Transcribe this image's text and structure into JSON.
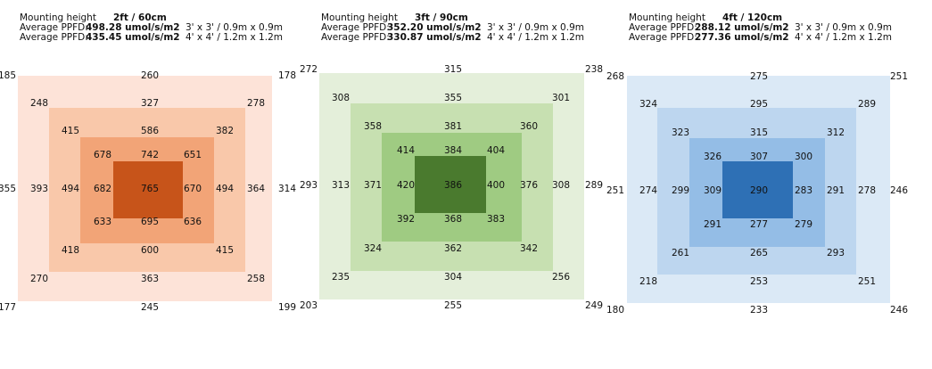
{
  "panels": [
    {
      "labels": {
        "mounting": "Mounting height",
        "height": "2ft / 60cm",
        "ppfd_label_1": "Average PPFD:",
        "ppfd_label_2": "Average PPFD:",
        "ppfd_1": "498.28 umol/s/m2",
        "ppfd_2": "435.45 umol/s/m2",
        "size_1": "3' x 3' / 0.9m x 0.9m",
        "size_2": "4' x 4' / 1.2m x 1.2m"
      },
      "colors": [
        "#fde3d8",
        "#f9c8aa",
        "#f2a477",
        "#c7541a"
      ],
      "values": {
        "outer": {
          "tl": "185",
          "t": "260",
          "tr": "178",
          "l": "355",
          "r": "314",
          "bl": "177",
          "b": "245",
          "br": "199"
        },
        "ring1": {
          "tl": "248",
          "t": "327",
          "tr": "278",
          "l": "393",
          "r": "364",
          "bl": "270",
          "b": "363",
          "br": "258"
        },
        "ring2": {
          "tl": "415",
          "t": "586",
          "tr": "382",
          "l": "494",
          "r": "494",
          "bl": "418",
          "b": "600",
          "br": "415"
        },
        "ring3": {
          "tl": "678",
          "t": "742",
          "tr": "651",
          "l": "682",
          "r": "670",
          "bl": "633",
          "b": "695",
          "br": "636"
        },
        "center": "765"
      }
    },
    {
      "labels": {
        "mounting": "Mounting height",
        "height": "3ft / 90cm",
        "ppfd_label_1": "Average PPFD:",
        "ppfd_label_2": "Average PPFD:",
        "ppfd_1": "352.20 umol/s/m2",
        "ppfd_2": "330.87 umol/s/m2",
        "size_1": "3' x 3' / 0.9m x 0.9m",
        "size_2": "4' x 4' / 1.2m x 1.2m"
      },
      "colors": [
        "#e4efda",
        "#c7e0b1",
        "#9fcb82",
        "#4a7a2e"
      ],
      "values": {
        "outer": {
          "tl": "272",
          "t": "315",
          "tr": "238",
          "l": "293",
          "r": "289",
          "bl": "203",
          "b": "255",
          "br": "249"
        },
        "ring1": {
          "tl": "308",
          "t": "355",
          "tr": "301",
          "l": "313",
          "r": "308",
          "bl": "235",
          "b": "304",
          "br": "256"
        },
        "ring2": {
          "tl": "358",
          "t": "381",
          "tr": "360",
          "l": "371",
          "r": "376",
          "bl": "324",
          "b": "362",
          "br": "342"
        },
        "ring3": {
          "tl": "414",
          "t": "384",
          "tr": "404",
          "l": "420",
          "r": "400",
          "bl": "392",
          "b": "368",
          "br": "383"
        },
        "center": "386"
      }
    },
    {
      "labels": {
        "mounting": "Mounting height",
        "height": "4ft / 120cm",
        "ppfd_label_1": "Average PPFD:",
        "ppfd_label_2": "Average PPFD:",
        "ppfd_1": "288.12 umol/s/m2",
        "ppfd_2": "277.36 umol/s/m2",
        "size_1": "3' x 3' / 0.9m x 0.9m",
        "size_2": "4' x 4' / 1.2m x 1.2m"
      },
      "colors": [
        "#dbe9f6",
        "#bdd6ef",
        "#94bde6",
        "#2e70b5"
      ],
      "values": {
        "outer": {
          "tl": "268",
          "t": "275",
          "tr": "251",
          "l": "251",
          "r": "246",
          "bl": "180",
          "b": "233",
          "br": "246"
        },
        "ring1": {
          "tl": "324",
          "t": "295",
          "tr": "289",
          "l": "274",
          "r": "278",
          "bl": "218",
          "b": "253",
          "br": "251"
        },
        "ring2": {
          "tl": "323",
          "t": "315",
          "tr": "312",
          "l": "299",
          "r": "291",
          "bl": "261",
          "b": "265",
          "br": "293"
        },
        "ring3": {
          "tl": "326",
          "t": "307",
          "tr": "300",
          "l": "309",
          "r": "283",
          "bl": "291",
          "b": "277",
          "br": "279"
        },
        "center": "290"
      }
    }
  ]
}
